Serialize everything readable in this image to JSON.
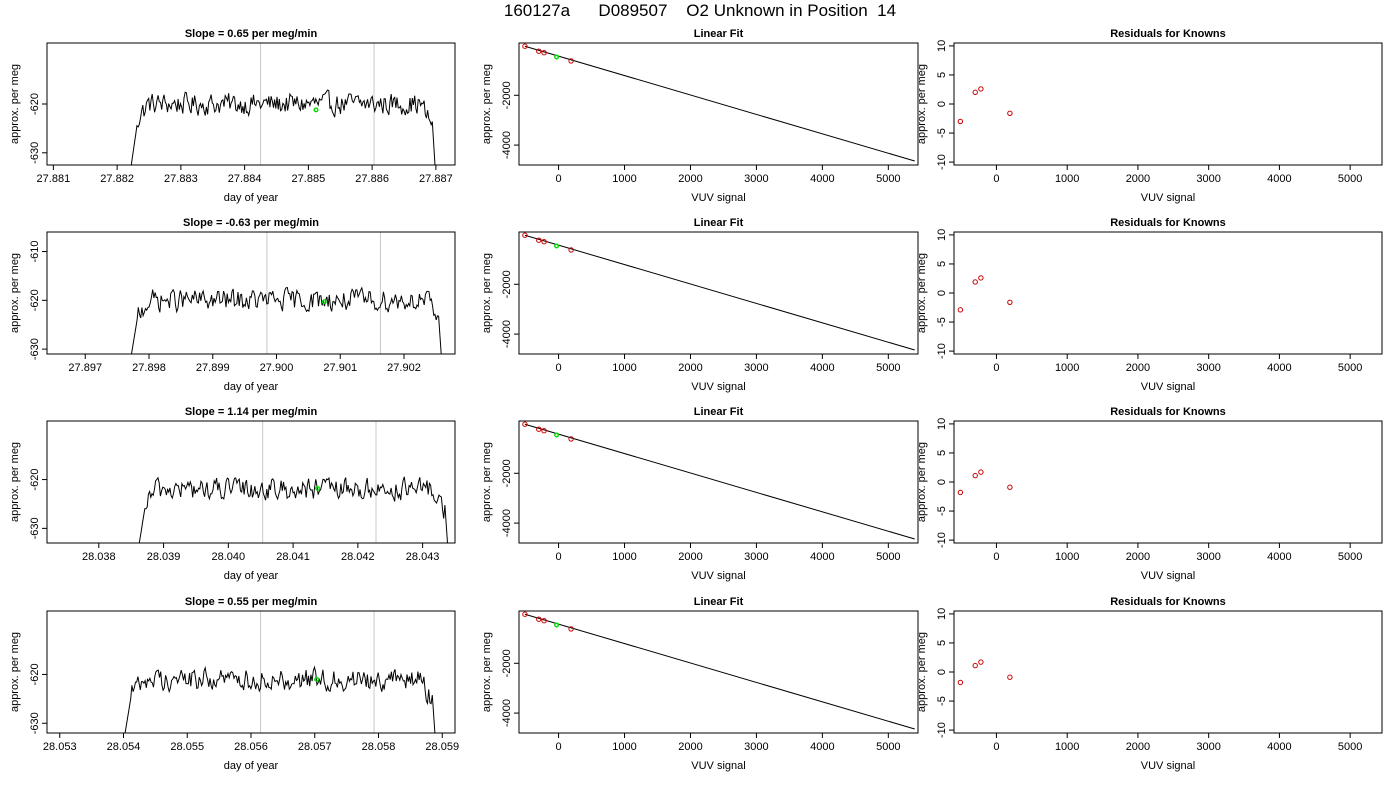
{
  "page": {
    "title": "160127a      D089507    O2 Unknown in Position  14"
  },
  "colors": {
    "axis": "#000000",
    "trace": "#000000",
    "marker_vlines": "#c8c8c8",
    "unknown_point": "#00dd00",
    "known_points": "#cc0000",
    "fit_line": "#000000"
  },
  "chart_data": [
    {
      "type": "line",
      "title": "Slope =  0.65  per meg/min",
      "xlabel": "day of year",
      "ylabel": "approx. per meg",
      "xlim": [
        27.8809,
        27.8873
      ],
      "ylim": [
        -632.5,
        -607.5
      ],
      "xticks": [
        27.881,
        27.882,
        27.883,
        27.884,
        27.885,
        27.886,
        27.887
      ],
      "xtick_labels": [
        "27.881",
        "27.882",
        "27.883",
        "27.884",
        "27.885",
        "27.886",
        "27.887"
      ],
      "yticks": [
        -630,
        -620
      ],
      "ytick_labels": [
        "-630",
        "-620"
      ],
      "trace_range": [
        27.8822,
        27.887
      ],
      "trace_level": -620,
      "vlines": [
        27.88425,
        27.88603
      ],
      "unknown_point": {
        "x": 27.88512,
        "y": -621.2
      }
    },
    {
      "type": "line",
      "title": "Linear Fit",
      "xlabel": "VUV signal",
      "ylabel": "approx. per meg",
      "xlim": [
        -600,
        5450
      ],
      "ylim": [
        -4800,
        100
      ],
      "xticks": [
        0,
        1000,
        2000,
        3000,
        4000,
        5000
      ],
      "xtick_labels": [
        "0",
        "1000",
        "2000",
        "3000",
        "4000",
        "5000"
      ],
      "yticks": [
        -4000,
        -2000
      ],
      "ytick_labels": [
        "-4000",
        "-2000"
      ],
      "fit_line": {
        "x": [
          -510,
          5400
        ],
        "y": [
          -30,
          -4640
        ]
      },
      "known_points": {
        "x": [
          -510,
          -300,
          -220,
          190
        ],
        "y": [
          -30,
          -230,
          -290,
          -620
        ]
      },
      "unknown_point": {
        "x": -30,
        "y": -460
      }
    },
    {
      "type": "scatter",
      "title": "Residuals for Knowns",
      "xlabel": "VUV signal",
      "ylabel": "approx. per meg",
      "xlim": [
        -600,
        5450
      ],
      "ylim": [
        -10.5,
        10.5
      ],
      "xticks": [
        0,
        1000,
        2000,
        3000,
        4000,
        5000
      ],
      "xtick_labels": [
        "0",
        "1000",
        "2000",
        "3000",
        "4000",
        "5000"
      ],
      "yticks": [
        -10,
        -5,
        0,
        5,
        10
      ],
      "ytick_labels": [
        "-10",
        "-5",
        "0",
        "5",
        "10"
      ],
      "x": [
        -510,
        -300,
        -220,
        190
      ],
      "y": [
        -3.0,
        2.0,
        2.6,
        -1.6
      ]
    },
    {
      "type": "line",
      "title": "Slope =  -0.63  per meg/min",
      "xlabel": "day of year",
      "ylabel": "approx. per meg",
      "xlim": [
        27.8964,
        27.9028
      ],
      "ylim": [
        -631,
        -606
      ],
      "xticks": [
        27.897,
        27.898,
        27.899,
        27.9,
        27.901,
        27.902
      ],
      "xtick_labels": [
        "27.897",
        "27.898",
        "27.899",
        "27.900",
        "27.901",
        "27.902"
      ],
      "yticks": [
        -630,
        -620,
        -610
      ],
      "ytick_labels": [
        "-630",
        "-620",
        "-610"
      ],
      "trace_range": [
        27.8977,
        27.9026
      ],
      "trace_level": -620,
      "vlines": [
        27.89985,
        27.90163
      ],
      "unknown_point": {
        "x": 27.90075,
        "y": -620.3
      }
    },
    {
      "type": "line",
      "title": "Linear Fit",
      "xlabel": "VUV signal",
      "ylabel": "approx. per meg",
      "xlim": [
        -600,
        5450
      ],
      "ylim": [
        -4800,
        100
      ],
      "xticks": [
        0,
        1000,
        2000,
        3000,
        4000,
        5000
      ],
      "xtick_labels": [
        "0",
        "1000",
        "2000",
        "3000",
        "4000",
        "5000"
      ],
      "yticks": [
        -4000,
        -2000
      ],
      "ytick_labels": [
        "-4000",
        "-2000"
      ],
      "fit_line": {
        "x": [
          -510,
          5400
        ],
        "y": [
          -30,
          -4640
        ]
      },
      "known_points": {
        "x": [
          -510,
          -300,
          -220,
          190
        ],
        "y": [
          -30,
          -230,
          -290,
          -620
        ]
      },
      "unknown_point": {
        "x": -30,
        "y": -460
      }
    },
    {
      "type": "scatter",
      "title": "Residuals for Knowns",
      "xlabel": "VUV signal",
      "ylabel": "approx. per meg",
      "xlim": [
        -600,
        5450
      ],
      "ylim": [
        -10.5,
        10.5
      ],
      "xticks": [
        0,
        1000,
        2000,
        3000,
        4000,
        5000
      ],
      "xtick_labels": [
        "0",
        "1000",
        "2000",
        "3000",
        "4000",
        "5000"
      ],
      "yticks": [
        -10,
        -5,
        0,
        5,
        10
      ],
      "ytick_labels": [
        "-10",
        "-5",
        "0",
        "5",
        "10"
      ],
      "x": [
        -510,
        -300,
        -220,
        190
      ],
      "y": [
        -2.9,
        1.9,
        2.6,
        -1.6
      ]
    },
    {
      "type": "line",
      "title": "Slope =  1.14  per meg/min",
      "xlabel": "day of year",
      "ylabel": "approx. per meg",
      "xlim": [
        28.0372,
        28.0435
      ],
      "ylim": [
        -633,
        -608
      ],
      "xticks": [
        28.038,
        28.039,
        28.04,
        28.041,
        28.042,
        28.043
      ],
      "xtick_labels": [
        "28.038",
        "28.039",
        "28.040",
        "28.041",
        "28.042",
        "28.043"
      ],
      "yticks": [
        -630,
        -620
      ],
      "ytick_labels": [
        "-630",
        "-620"
      ],
      "trace_range": [
        28.0386,
        28.0434
      ],
      "trace_level": -622,
      "vlines": [
        28.04053,
        28.04228
      ],
      "unknown_point": {
        "x": 28.04138,
        "y": -621.8
      }
    },
    {
      "type": "line",
      "title": "Linear Fit",
      "xlabel": "VUV signal",
      "ylabel": "approx. per meg",
      "xlim": [
        -600,
        5450
      ],
      "ylim": [
        -4800,
        100
      ],
      "xticks": [
        0,
        1000,
        2000,
        3000,
        4000,
        5000
      ],
      "xtick_labels": [
        "0",
        "1000",
        "2000",
        "3000",
        "4000",
        "5000"
      ],
      "yticks": [
        -4000,
        -2000
      ],
      "ytick_labels": [
        "-4000",
        "-2000"
      ],
      "fit_line": {
        "x": [
          -510,
          5400
        ],
        "y": [
          -30,
          -4640
        ]
      },
      "known_points": {
        "x": [
          -510,
          -300,
          -220,
          190
        ],
        "y": [
          -30,
          -230,
          -290,
          -620
        ]
      },
      "unknown_point": {
        "x": -30,
        "y": -460
      }
    },
    {
      "type": "scatter",
      "title": "Residuals for Knowns",
      "xlabel": "VUV signal",
      "ylabel": "approx. per meg",
      "xlim": [
        -600,
        5450
      ],
      "ylim": [
        -10.5,
        10.5
      ],
      "xticks": [
        0,
        1000,
        2000,
        3000,
        4000,
        5000
      ],
      "xtick_labels": [
        "0",
        "1000",
        "2000",
        "3000",
        "4000",
        "5000"
      ],
      "yticks": [
        -10,
        -5,
        0,
        5,
        10
      ],
      "ytick_labels": [
        "-10",
        "-5",
        "0",
        "5",
        "10"
      ],
      "x": [
        -510,
        -300,
        -220,
        190
      ],
      "y": [
        -1.8,
        1.1,
        1.7,
        -0.9
      ]
    },
    {
      "type": "line",
      "title": "Slope =  0.55  per meg/min",
      "xlabel": "day of year",
      "ylabel": "approx. per meg",
      "xlim": [
        28.0528,
        28.0592
      ],
      "ylim": [
        -632,
        -607
      ],
      "xticks": [
        28.053,
        28.054,
        28.055,
        28.056,
        28.057,
        28.058,
        28.059
      ],
      "xtick_labels": [
        "28.053",
        "28.054",
        "28.055",
        "28.056",
        "28.057",
        "28.058",
        "28.059"
      ],
      "yticks": [
        -630,
        -620
      ],
      "ytick_labels": [
        "-630",
        "-620"
      ],
      "trace_range": [
        28.054,
        28.0589
      ],
      "trace_level": -621,
      "vlines": [
        28.05615,
        28.05793
      ],
      "unknown_point": {
        "x": 28.05703,
        "y": -621
      }
    },
    {
      "type": "line",
      "title": "Linear Fit",
      "xlabel": "VUV signal",
      "ylabel": "approx. per meg",
      "xlim": [
        -600,
        5450
      ],
      "ylim": [
        -4800,
        100
      ],
      "xticks": [
        0,
        1000,
        2000,
        3000,
        4000,
        5000
      ],
      "xtick_labels": [
        "0",
        "1000",
        "2000",
        "3000",
        "4000",
        "5000"
      ],
      "yticks": [
        -4000,
        -2000
      ],
      "ytick_labels": [
        "-4000",
        "-2000"
      ],
      "fit_line": {
        "x": [
          -510,
          5400
        ],
        "y": [
          -30,
          -4640
        ]
      },
      "known_points": {
        "x": [
          -510,
          -300,
          -220,
          190
        ],
        "y": [
          -30,
          -230,
          -290,
          -620
        ]
      },
      "unknown_point": {
        "x": -30,
        "y": -460
      }
    },
    {
      "type": "scatter",
      "title": "Residuals for Knowns",
      "xlabel": "VUV signal",
      "ylabel": "approx. per meg",
      "xlim": [
        -600,
        5450
      ],
      "ylim": [
        -10.5,
        10.5
      ],
      "xticks": [
        0,
        1000,
        2000,
        3000,
        4000,
        5000
      ],
      "xtick_labels": [
        "0",
        "1000",
        "2000",
        "3000",
        "4000",
        "5000"
      ],
      "yticks": [
        -10,
        -5,
        0,
        5,
        10
      ],
      "ytick_labels": [
        "-10",
        "-5",
        "0",
        "5",
        "10"
      ],
      "x": [
        -510,
        -300,
        -220,
        190
      ],
      "y": [
        -1.8,
        1.1,
        1.7,
        -0.9
      ]
    }
  ]
}
